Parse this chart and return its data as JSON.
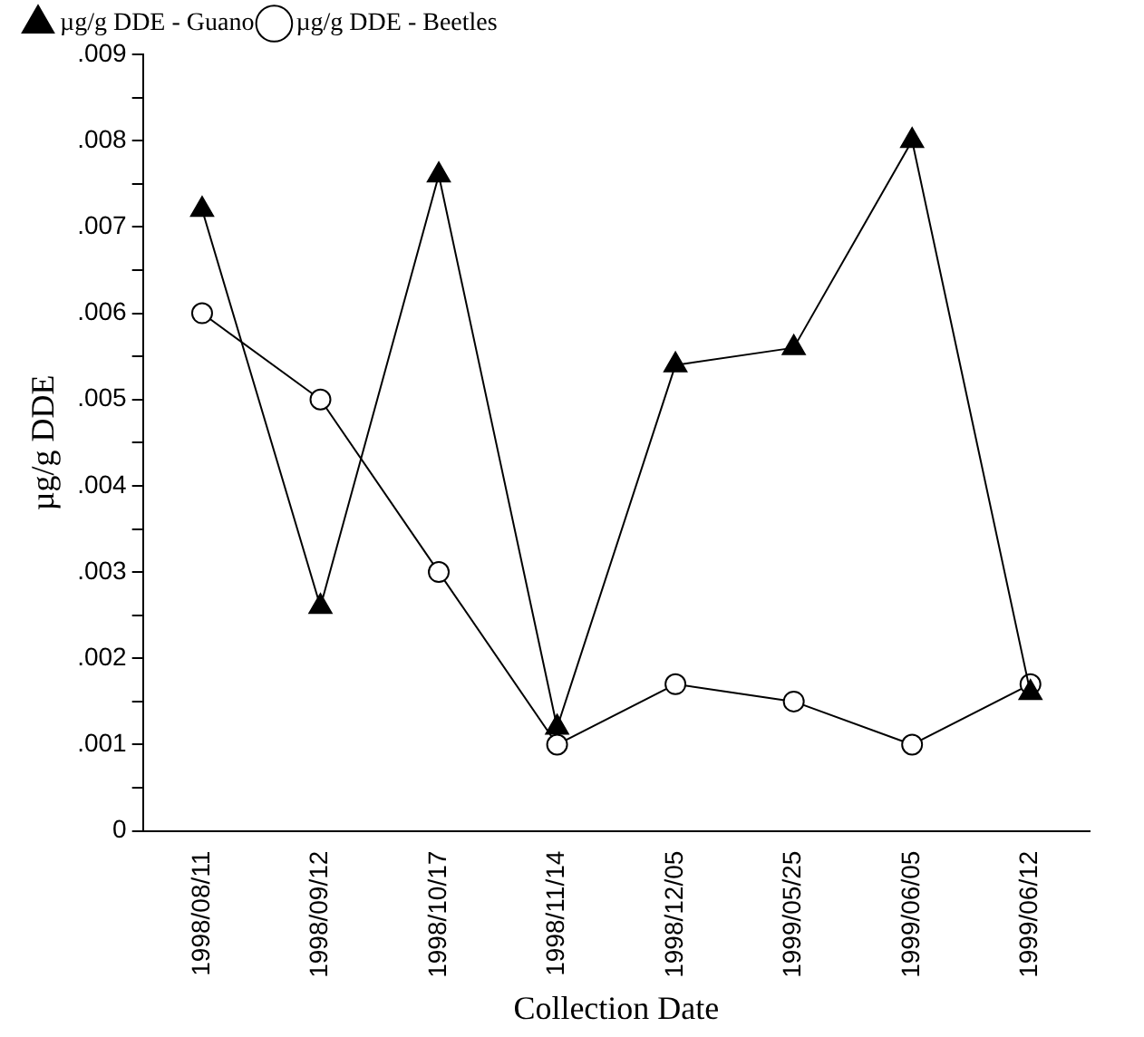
{
  "chart_data": {
    "type": "line",
    "xlabel": "Collection Date",
    "ylabel": "µg/g DDE",
    "categories": [
      "1998/08/11",
      "1998/09/12",
      "1998/10/17",
      "1998/11/14",
      "1998/12/05",
      "1999/05/25",
      "1999/06/05",
      "1999/06/12"
    ],
    "series": [
      {
        "name": "µg/g DDE - Guano",
        "color": "#000000",
        "marker": "triangle",
        "values": [
          0.0072,
          0.0026,
          0.0076,
          0.0012,
          0.0054,
          0.0056,
          0.008,
          0.0016
        ]
      },
      {
        "name": "µg/g DDE - Beetles",
        "color": "#000000",
        "marker": "circle",
        "values": [
          0.006,
          0.005,
          0.003,
          0.001,
          0.0017,
          0.0015,
          0.001,
          0.0017
        ]
      }
    ],
    "ylim": [
      0,
      0.009
    ],
    "yticks": [
      0,
      {
        "value": 0.0005,
        "label": null
      },
      {
        "value": 0.001,
        "label": ".001"
      },
      {
        "value": 0.0015,
        "label": null
      },
      {
        "value": 0.002,
        "label": ".002"
      },
      {
        "value": 0.0025,
        "label": null
      },
      {
        "value": 0.003,
        "label": ".003"
      },
      {
        "value": 0.0035,
        "label": null
      },
      {
        "value": 0.004,
        "label": ".004"
      },
      {
        "value": 0.0045,
        "label": null
      },
      {
        "value": 0.005,
        "label": ".005"
      },
      {
        "value": 0.0055,
        "label": null
      },
      {
        "value": 0.006,
        "label": ".006"
      },
      {
        "value": 0.0065,
        "label": null
      },
      {
        "value": 0.007,
        "label": ".007"
      },
      {
        "value": 0.0075,
        "label": null
      },
      {
        "value": 0.008,
        "label": ".008"
      },
      {
        "value": 0.0085,
        "label": null
      },
      {
        "value": 0.009,
        "label": ".009"
      }
    ],
    "legend": "top left",
    "line_style": "solid"
  }
}
